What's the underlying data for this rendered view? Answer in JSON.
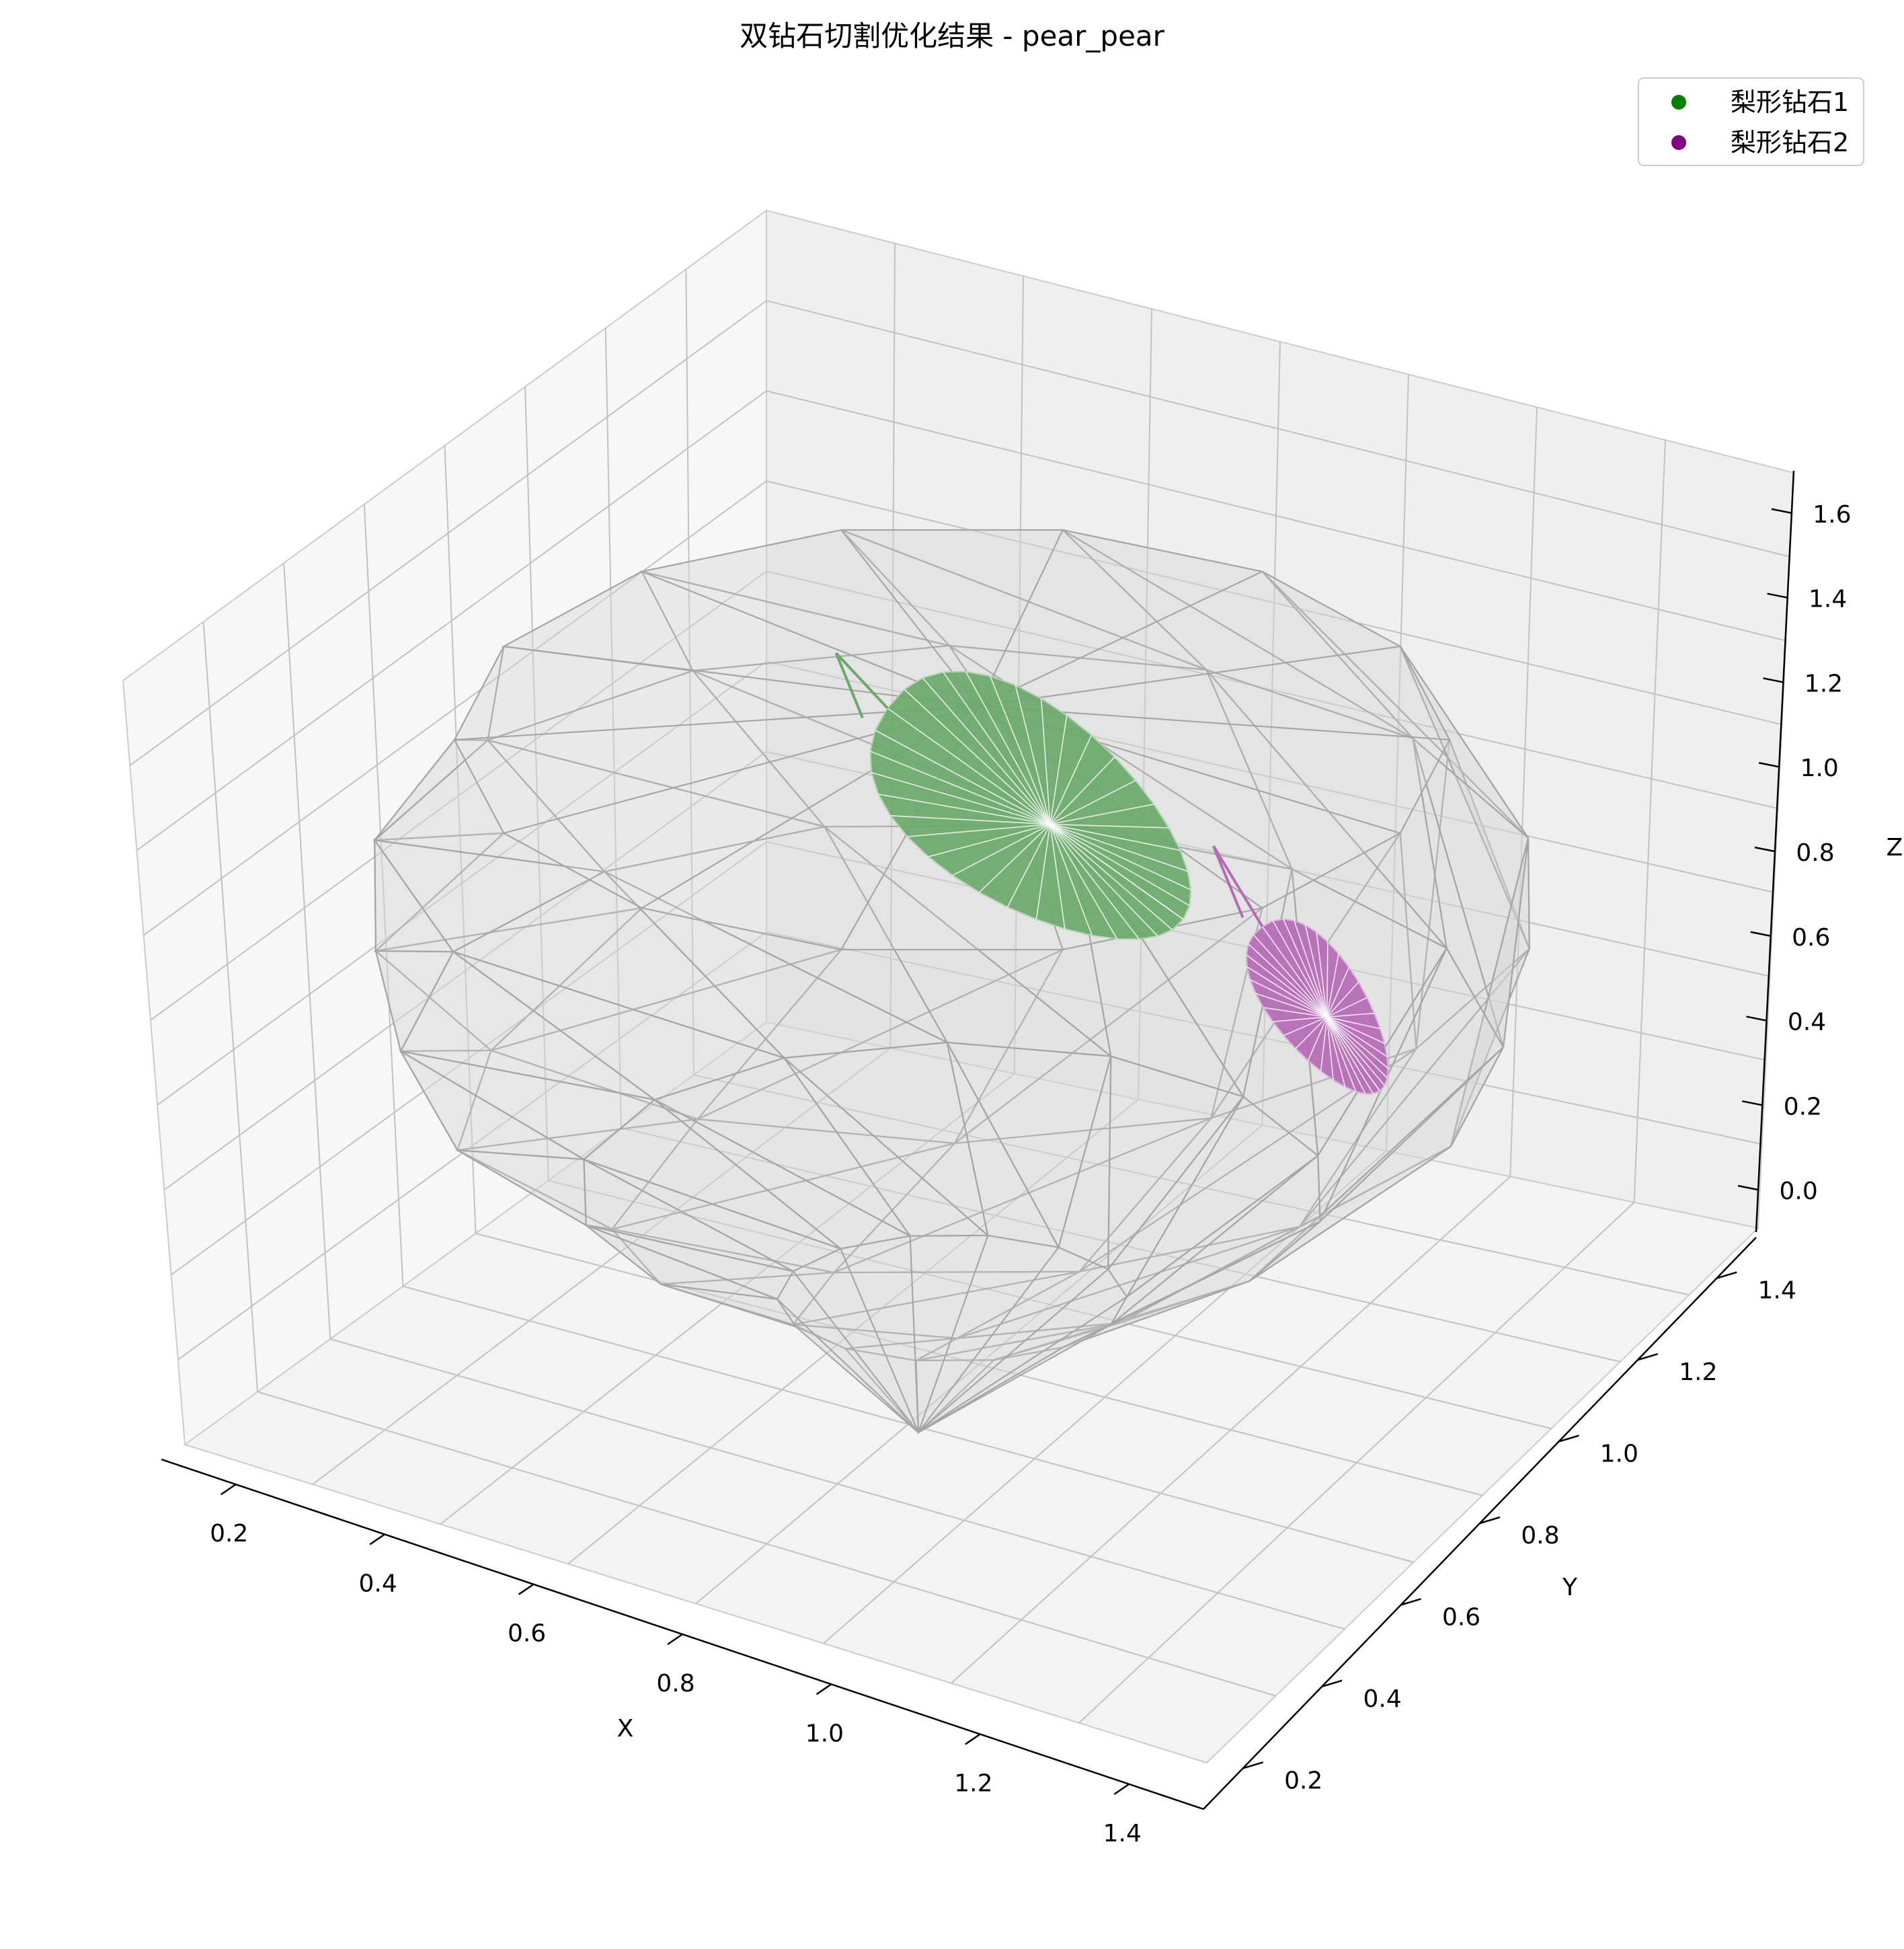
{
  "chart_data": {
    "type": "3d-mesh",
    "title": "双钻石切割优化结果 - pear_pear",
    "xlabel": "X",
    "ylabel": "Y",
    "zlabel": "Z",
    "xlim": [
      0.1,
      1.6
    ],
    "ylim": [
      0.15,
      1.55
    ],
    "zlim": [
      0.0,
      1.6
    ],
    "x_ticks": [
      "0.2",
      "0.4",
      "0.6",
      "0.8",
      "1.0",
      "1.2",
      "1.4"
    ],
    "y_ticks": [
      "0.2",
      "0.4",
      "0.6",
      "0.8",
      "1.0",
      "1.2",
      "1.4"
    ],
    "z_ticks": [
      "0.0",
      "0.2",
      "0.4",
      "0.6",
      "0.8",
      "1.0",
      "1.2",
      "1.4",
      "1.6"
    ],
    "grid": true,
    "legend_position": "top-right",
    "series": [
      {
        "name": "梨形钻石1",
        "color": "#008000",
        "mesh_color": "#6aa96a"
      },
      {
        "name": "梨形钻石2",
        "color": "#800080",
        "mesh_color": "#b56ab5"
      }
    ],
    "rough_stone": {
      "color": "#d9d9d9",
      "edge_color": "#a6a6a6"
    }
  }
}
